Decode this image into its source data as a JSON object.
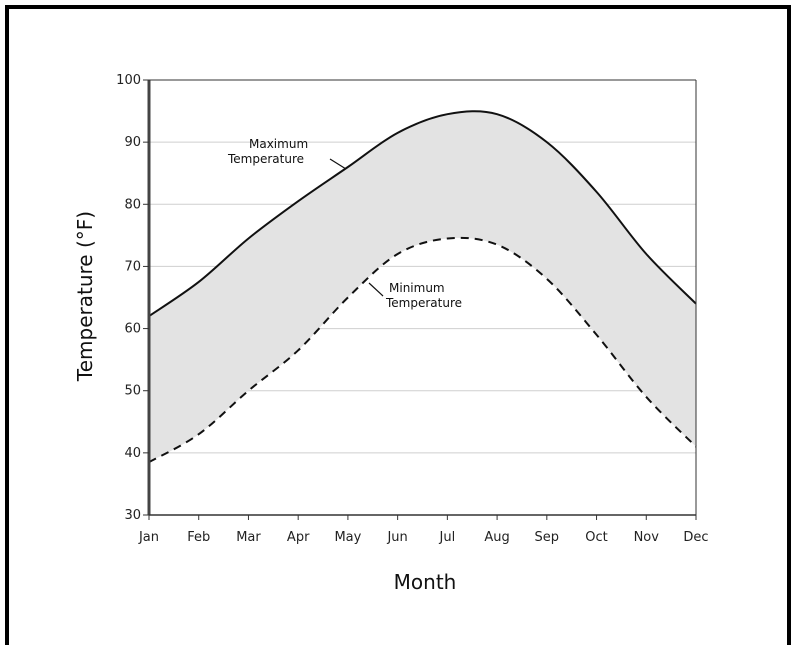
{
  "chart_data": {
    "type": "area",
    "title": "",
    "xlabel": "Month",
    "ylabel": "Temperature (°F)",
    "categories": [
      "Jan",
      "Feb",
      "Mar",
      "Apr",
      "May",
      "Jun",
      "Jul",
      "Aug",
      "Sep",
      "Oct",
      "Nov",
      "Dec"
    ],
    "ylim": [
      30,
      100
    ],
    "yticks": [
      "30",
      "40",
      "50",
      "60",
      "70",
      "80",
      "90",
      "100"
    ],
    "grid": true,
    "series": [
      {
        "name": "Maximum Temperature",
        "line_style": "solid",
        "values": [
          62,
          67.5,
          74.5,
          80.5,
          86,
          91.5,
          94.5,
          94.5,
          90,
          82,
          72,
          64
        ]
      },
      {
        "name": "Minimum Temperature",
        "line_style": "dashed",
        "values": [
          38.5,
          43,
          50,
          56.5,
          65,
          72,
          74.5,
          73.5,
          68,
          59,
          49,
          41
        ]
      }
    ],
    "annotations": [
      {
        "lines": [
          "Maximum",
          "Temperature"
        ],
        "series": "Maximum Temperature"
      },
      {
        "lines": [
          "Minimum",
          "Temperature"
        ],
        "series": "Minimum Temperature"
      }
    ],
    "colors": {
      "band_fill": "#e3e3e3",
      "line": "#111111",
      "grid": "#cfcfcf"
    }
  }
}
